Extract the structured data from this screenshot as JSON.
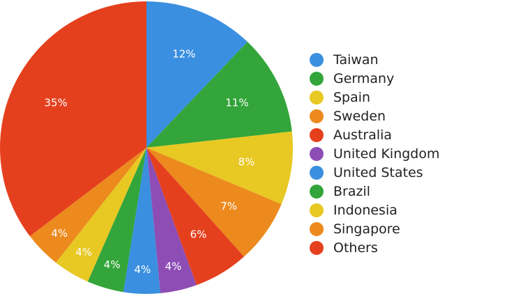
{
  "chart_data": {
    "type": "pie",
    "title": "",
    "legend_position": "right",
    "slices": [
      {
        "label": "Taiwan",
        "value": 12,
        "display": "12%",
        "color": "#3b8fe0"
      },
      {
        "label": "Germany",
        "value": 11,
        "display": "11%",
        "color": "#33a53a"
      },
      {
        "label": "Spain",
        "value": 8,
        "display": "8%",
        "color": "#e8c823"
      },
      {
        "label": "Sweden",
        "value": 7,
        "display": "7%",
        "color": "#ec8a1e"
      },
      {
        "label": "Australia",
        "value": 6,
        "display": "6%",
        "color": "#e5401e"
      },
      {
        "label": "United Kingdom",
        "value": 4,
        "display": "4%",
        "color": "#8d4db5"
      },
      {
        "label": "United States",
        "value": 4,
        "display": "4%",
        "color": "#3b8fe0"
      },
      {
        "label": "Brazil",
        "value": 4,
        "display": "4%",
        "color": "#33a53a"
      },
      {
        "label": "Indonesia",
        "value": 4,
        "display": "4%",
        "color": "#e8c823"
      },
      {
        "label": "Singapore",
        "value": 4,
        "display": "4%",
        "color": "#ec8a1e"
      },
      {
        "label": "Others",
        "value": 35,
        "display": "35%",
        "color": "#e5401e"
      }
    ]
  }
}
